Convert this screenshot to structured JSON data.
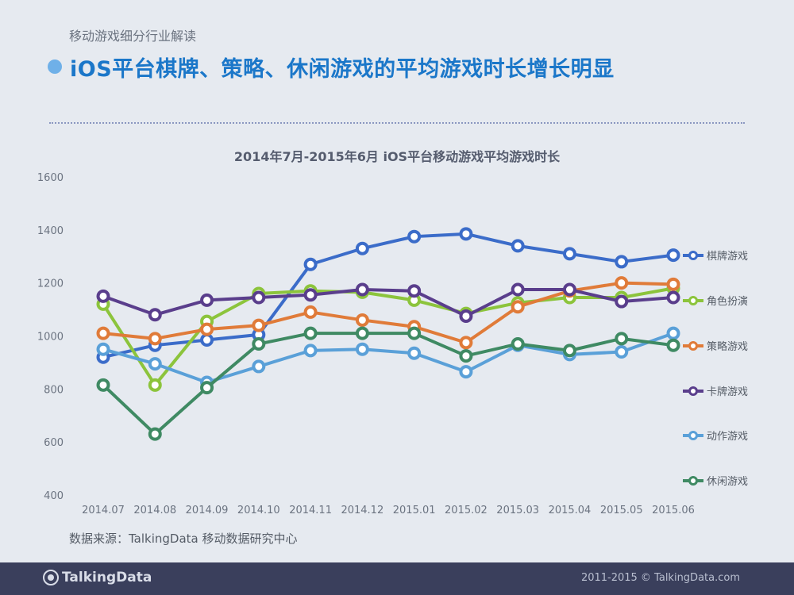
{
  "header": {
    "subtitle": "移动游戏细分行业解读",
    "title": "iOS平台棋牌、策略、休闲游戏的平均游戏时长增长明显"
  },
  "source": "数据来源：TalkingData 移动数据研究中心",
  "footer": {
    "brand": "TalkingData",
    "copyright": "2011-2015 © TalkingData.com"
  },
  "colors": {
    "title": "#1b77c9",
    "qipai": "#3b6cc9",
    "juese": "#8cc43c",
    "celue": "#e07b39",
    "kapai": "#5a3e8c",
    "dongzuo": "#5aa0d8",
    "xiuxian": "#3f8a63"
  },
  "chart_data": {
    "type": "line",
    "title": "2014年7月-2015年6月 iOS平台移动游戏平均游戏时长",
    "xlabel": "",
    "ylabel": "",
    "ylim": [
      400,
      1600
    ],
    "yticks": [
      "1600",
      "1400",
      "1200",
      "1000",
      "800",
      "600",
      "400"
    ],
    "categories": [
      "2014.07",
      "2014.08",
      "2014.09",
      "2014.10",
      "2014.11",
      "2014.12",
      "2015.01",
      "2015.02",
      "2015.03",
      "2015.04",
      "2015.05",
      "2015.06"
    ],
    "legend_position": "right",
    "series": [
      {
        "name": "棋牌游戏",
        "color": "#3b6cc9",
        "values": [
          920,
          965,
          985,
          1005,
          1270,
          1330,
          1375,
          1385,
          1340,
          1310,
          1280,
          1305
        ]
      },
      {
        "name": "角色扮演",
        "color": "#8cc43c",
        "values": [
          1120,
          815,
          1055,
          1160,
          1170,
          1165,
          1135,
          1085,
          1125,
          1145,
          1145,
          1180
        ]
      },
      {
        "name": "策略游戏",
        "color": "#e07b39",
        "values": [
          1010,
          990,
          1025,
          1040,
          1090,
          1060,
          1035,
          975,
          1110,
          1170,
          1200,
          1195
        ]
      },
      {
        "name": "卡牌游戏",
        "color": "#5a3e8c",
        "values": [
          1150,
          1080,
          1135,
          1145,
          1155,
          1175,
          1170,
          1075,
          1175,
          1175,
          1130,
          1145
        ]
      },
      {
        "name": "动作游戏",
        "color": "#5aa0d8",
        "values": [
          950,
          895,
          825,
          885,
          945,
          950,
          935,
          865,
          965,
          930,
          940,
          1010
        ]
      },
      {
        "name": "休闲游戏",
        "color": "#3f8a63",
        "values": [
          815,
          630,
          805,
          970,
          1010,
          1010,
          1010,
          925,
          970,
          945,
          990,
          965
        ]
      }
    ]
  }
}
